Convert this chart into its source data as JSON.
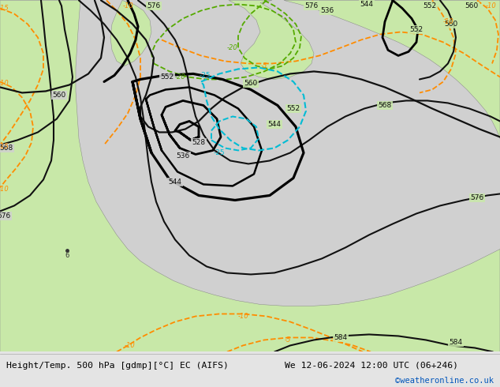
{
  "title_left": "Height/Temp. 500 hPa [gdmp][°C] EC (AIFS)",
  "title_right": "We 12-06-2024 12:00 UTC (06+246)",
  "credit": "©weatheronline.co.uk",
  "bg_color": "#d8d8d8",
  "land_color": "#c8e8a8",
  "footer_bg": "#e4e4e4",
  "figsize": [
    6.34,
    4.9
  ],
  "dpi": 100
}
